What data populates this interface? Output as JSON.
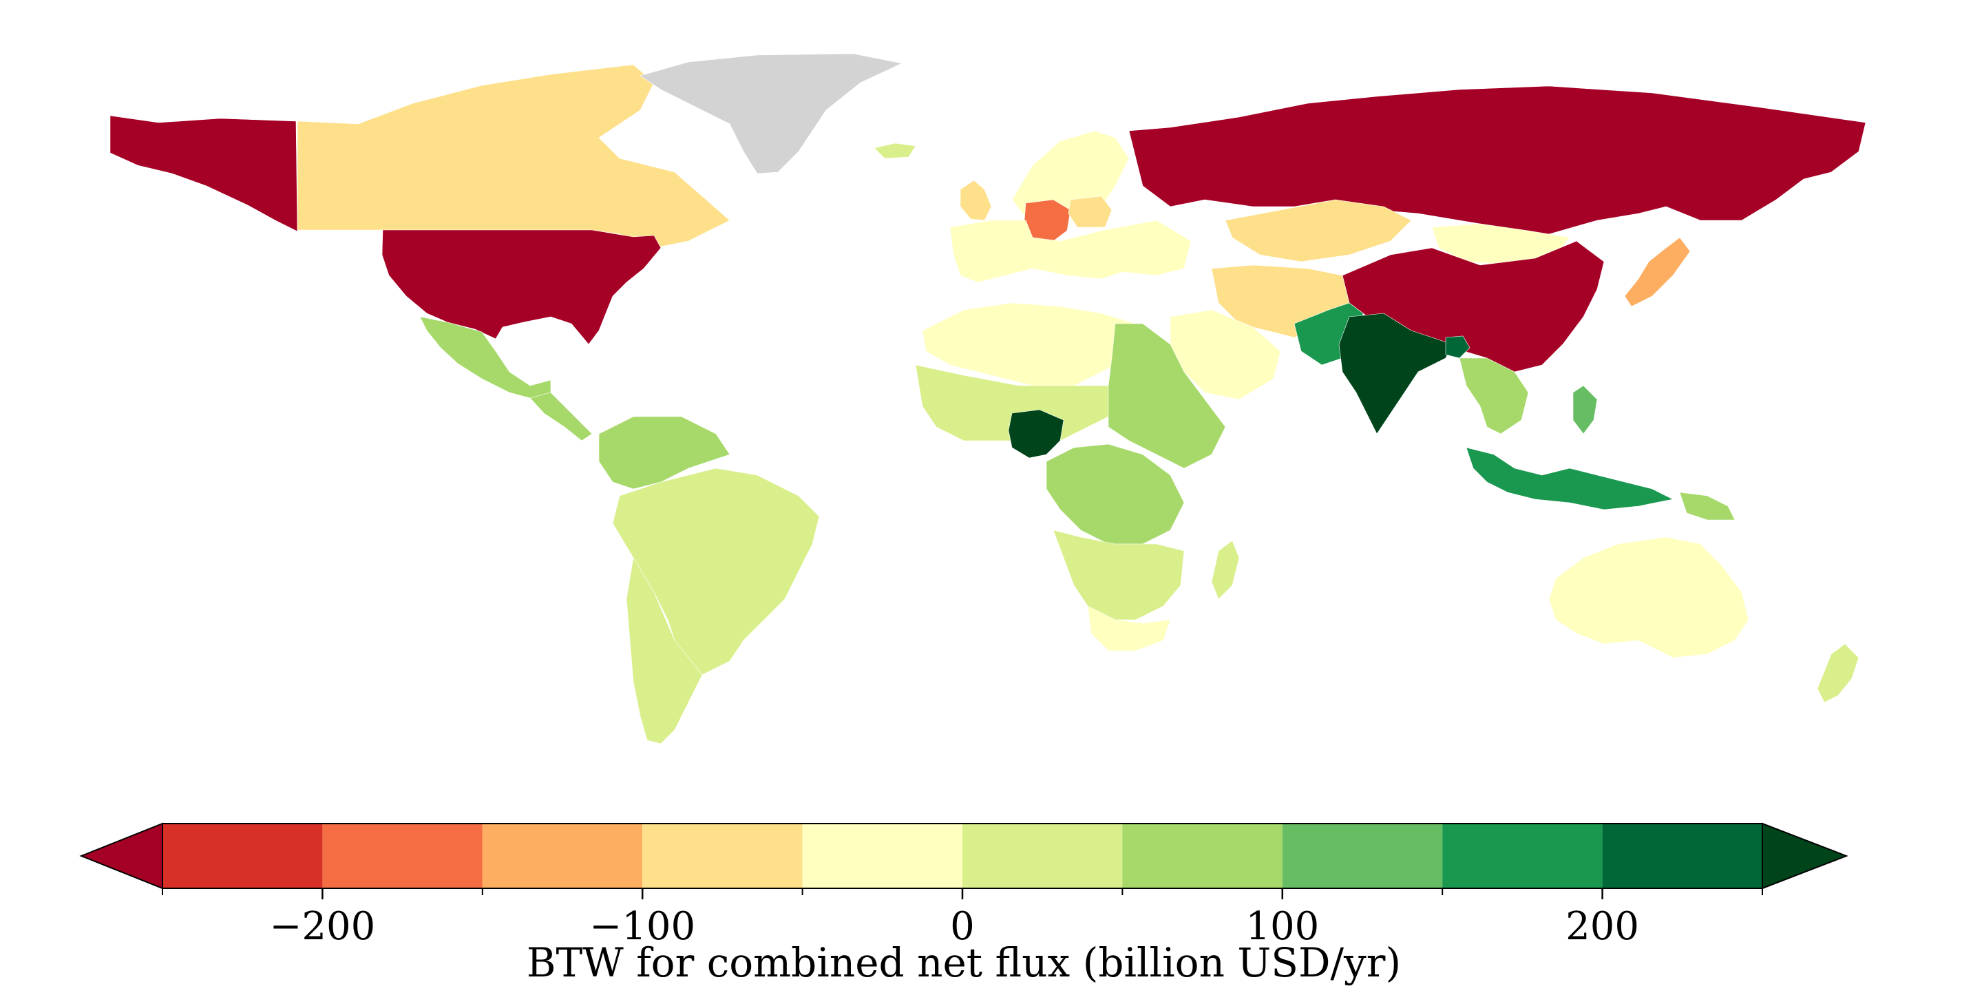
{
  "map": {
    "type": "choropleth-world",
    "nodata_color": "#d3d3d3",
    "projection": "plate-carree",
    "regions": [
      {
        "name": "Alaska",
        "bin": "under-min"
      },
      {
        "name": "Canada",
        "bin": "-100..-50"
      },
      {
        "name": "Greenland",
        "bin": "no-data"
      },
      {
        "name": "United States",
        "bin": "under-min"
      },
      {
        "name": "Mexico",
        "bin": "50..100"
      },
      {
        "name": "Central America",
        "bin": "50..100"
      },
      {
        "name": "Colombia / Venezuela",
        "bin": "50..100"
      },
      {
        "name": "Brazil",
        "bin": "0..50"
      },
      {
        "name": "Argentina / Chile",
        "bin": "0..50"
      },
      {
        "name": "Iceland",
        "bin": "0..50"
      },
      {
        "name": "Scandinavia",
        "bin": "-50..0"
      },
      {
        "name": "United Kingdom",
        "bin": "-100..-50"
      },
      {
        "name": "Germany",
        "bin": "-200..-150"
      },
      {
        "name": "Poland",
        "bin": "-100..-50"
      },
      {
        "name": "Europe",
        "bin": "-50..0"
      },
      {
        "name": "Russia",
        "bin": "under-min"
      },
      {
        "name": "Kazakhstan",
        "bin": "-100..-50"
      },
      {
        "name": "Mongolia",
        "bin": "-50..0"
      },
      {
        "name": "China",
        "bin": "under-min"
      },
      {
        "name": "Japan",
        "bin": "-150..-100"
      },
      {
        "name": "Iran / Afghanistan",
        "bin": "-100..-50"
      },
      {
        "name": "Saudi Arabia",
        "bin": "-50..0"
      },
      {
        "name": "North Africa",
        "bin": "-50..0"
      },
      {
        "name": "Sahel / West Africa",
        "bin": "0..50"
      },
      {
        "name": "Nigeria",
        "bin": "over-max"
      },
      {
        "name": "Sudan / Ethiopia",
        "bin": "50..100"
      },
      {
        "name": "Central Africa",
        "bin": "50..100"
      },
      {
        "name": "Southern Africa",
        "bin": "0..50"
      },
      {
        "name": "South Africa",
        "bin": "-50..0"
      },
      {
        "name": "Madagascar",
        "bin": "0..50"
      },
      {
        "name": "Pakistan",
        "bin": "150..200"
      },
      {
        "name": "India",
        "bin": "over-max"
      },
      {
        "name": "Bangladesh",
        "bin": "200..250"
      },
      {
        "name": "Southeast Asia",
        "bin": "50..100"
      },
      {
        "name": "Philippines",
        "bin": "100..150"
      },
      {
        "name": "Indonesia",
        "bin": "150..200"
      },
      {
        "name": "Papua New Guinea",
        "bin": "50..100"
      },
      {
        "name": "Australia",
        "bin": "-50..0"
      },
      {
        "name": "New Zealand",
        "bin": "0..50"
      }
    ]
  },
  "chart_data": {
    "type": "choropleth-colorbar",
    "title": "",
    "label": "BTW for combined net flux (billion USD/yr)",
    "range": [
      -250,
      250
    ],
    "bin_edges": [
      -250,
      -200,
      -150,
      -100,
      -50,
      0,
      50,
      100,
      150,
      200,
      250
    ],
    "extend": "both",
    "ticks": [
      -200,
      -100,
      0,
      100,
      200
    ],
    "tick_labels": [
      "−200",
      "−100",
      "0",
      "100",
      "200"
    ],
    "colors": {
      "under-min": "#a50026",
      "-250..-200": "#d73027",
      "-200..-150": "#f46d43",
      "-150..-100": "#fdae61",
      "-100..-50": "#fee08b",
      "-50..0": "#ffffbf",
      "0..50": "#d9ef8b",
      "50..100": "#a6d96a",
      "100..150": "#66bd63",
      "150..200": "#1a9850",
      "200..250": "#006837",
      "over-max": "#00441b"
    }
  }
}
